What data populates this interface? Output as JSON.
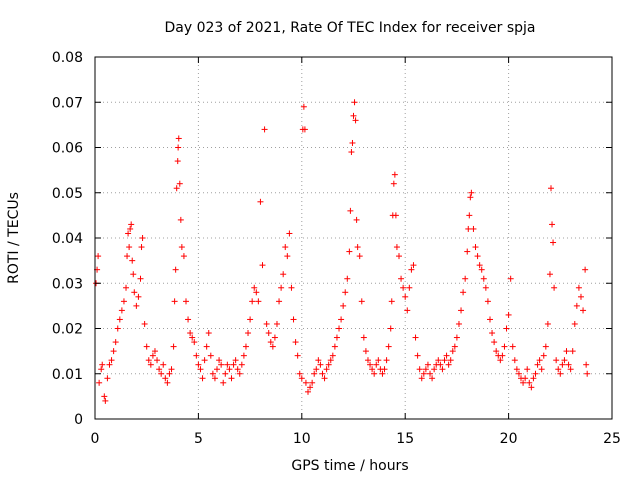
{
  "chart_data": {
    "type": "scatter",
    "title": "Day 023 of 2021, Rate Of TEC Index for receiver spja",
    "xlabel": "GPS time / hours",
    "ylabel": "ROTI / TECUs",
    "xlim": [
      0,
      25
    ],
    "ylim": [
      0,
      0.08
    ],
    "xticks": [
      0,
      5,
      10,
      15,
      20,
      25
    ],
    "xtick_labels": [
      "0",
      "5",
      "10",
      "15",
      "20",
      "25"
    ],
    "yticks": [
      0,
      0.01,
      0.02,
      0.03,
      0.04,
      0.05,
      0.06,
      0.07,
      0.08
    ],
    "ytick_labels": [
      "0",
      "0.01",
      "0.02",
      "0.03",
      "0.04",
      "0.05",
      "0.06",
      "0.07",
      "0.08"
    ],
    "grid": true,
    "marker": "plus",
    "color": "#ff0000",
    "series": [
      {
        "name": "ROTI",
        "points": [
          [
            0.05,
            0.03
          ],
          [
            0.1,
            0.033
          ],
          [
            0.15,
            0.036
          ],
          [
            0.2,
            0.008
          ],
          [
            0.3,
            0.011
          ],
          [
            0.35,
            0.012
          ],
          [
            0.45,
            0.005
          ],
          [
            0.5,
            0.004
          ],
          [
            0.6,
            0.009
          ],
          [
            0.7,
            0.012
          ],
          [
            0.8,
            0.013
          ],
          [
            0.9,
            0.015
          ],
          [
            1.0,
            0.017
          ],
          [
            1.1,
            0.02
          ],
          [
            1.2,
            0.022
          ],
          [
            1.3,
            0.024
          ],
          [
            1.4,
            0.026
          ],
          [
            1.5,
            0.029
          ],
          [
            1.55,
            0.036
          ],
          [
            1.6,
            0.041
          ],
          [
            1.65,
            0.038
          ],
          [
            1.7,
            0.042
          ],
          [
            1.75,
            0.043
          ],
          [
            1.8,
            0.035
          ],
          [
            1.85,
            0.032
          ],
          [
            1.9,
            0.028
          ],
          [
            2.0,
            0.025
          ],
          [
            2.1,
            0.027
          ],
          [
            2.2,
            0.031
          ],
          [
            2.25,
            0.038
          ],
          [
            2.3,
            0.04
          ],
          [
            2.4,
            0.021
          ],
          [
            2.5,
            0.016
          ],
          [
            2.6,
            0.013
          ],
          [
            2.7,
            0.012
          ],
          [
            2.8,
            0.014
          ],
          [
            2.9,
            0.015
          ],
          [
            3.0,
            0.013
          ],
          [
            3.1,
            0.011
          ],
          [
            3.2,
            0.01
          ],
          [
            3.3,
            0.012
          ],
          [
            3.4,
            0.009
          ],
          [
            3.5,
            0.008
          ],
          [
            3.6,
            0.01
          ],
          [
            3.7,
            0.011
          ],
          [
            3.8,
            0.016
          ],
          [
            3.85,
            0.026
          ],
          [
            3.9,
            0.033
          ],
          [
            3.95,
            0.051
          ],
          [
            4.0,
            0.057
          ],
          [
            4.02,
            0.06
          ],
          [
            4.05,
            0.062
          ],
          [
            4.1,
            0.052
          ],
          [
            4.15,
            0.044
          ],
          [
            4.2,
            0.038
          ],
          [
            4.3,
            0.036
          ],
          [
            4.4,
            0.026
          ],
          [
            4.5,
            0.022
          ],
          [
            4.6,
            0.019
          ],
          [
            4.7,
            0.018
          ],
          [
            4.8,
            0.017
          ],
          [
            4.9,
            0.014
          ],
          [
            5.0,
            0.012
          ],
          [
            5.1,
            0.011
          ],
          [
            5.2,
            0.009
          ],
          [
            5.3,
            0.013
          ],
          [
            5.4,
            0.016
          ],
          [
            5.5,
            0.019
          ],
          [
            5.6,
            0.014
          ],
          [
            5.7,
            0.01
          ],
          [
            5.8,
            0.009
          ],
          [
            5.9,
            0.011
          ],
          [
            6.0,
            0.013
          ],
          [
            6.1,
            0.012
          ],
          [
            6.2,
            0.008
          ],
          [
            6.3,
            0.01
          ],
          [
            6.4,
            0.012
          ],
          [
            6.5,
            0.011
          ],
          [
            6.6,
            0.009
          ],
          [
            6.7,
            0.012
          ],
          [
            6.8,
            0.013
          ],
          [
            6.9,
            0.011
          ],
          [
            7.0,
            0.01
          ],
          [
            7.1,
            0.012
          ],
          [
            7.2,
            0.014
          ],
          [
            7.3,
            0.016
          ],
          [
            7.4,
            0.019
          ],
          [
            7.5,
            0.022
          ],
          [
            7.6,
            0.026
          ],
          [
            7.7,
            0.029
          ],
          [
            7.8,
            0.028
          ],
          [
            7.9,
            0.026
          ],
          [
            8.0,
            0.048
          ],
          [
            8.1,
            0.034
          ],
          [
            8.2,
            0.064
          ],
          [
            8.3,
            0.021
          ],
          [
            8.4,
            0.019
          ],
          [
            8.5,
            0.017
          ],
          [
            8.6,
            0.016
          ],
          [
            8.7,
            0.018
          ],
          [
            8.8,
            0.021
          ],
          [
            8.9,
            0.026
          ],
          [
            9.0,
            0.029
          ],
          [
            9.1,
            0.032
          ],
          [
            9.2,
            0.038
          ],
          [
            9.3,
            0.036
          ],
          [
            9.4,
            0.041
          ],
          [
            9.5,
            0.029
          ],
          [
            9.6,
            0.022
          ],
          [
            9.7,
            0.017
          ],
          [
            9.8,
            0.014
          ],
          [
            9.9,
            0.01
          ],
          [
            10.0,
            0.009
          ],
          [
            10.05,
            0.064
          ],
          [
            10.1,
            0.069
          ],
          [
            10.15,
            0.064
          ],
          [
            10.2,
            0.008
          ],
          [
            10.3,
            0.006
          ],
          [
            10.4,
            0.007
          ],
          [
            10.5,
            0.008
          ],
          [
            10.6,
            0.01
          ],
          [
            10.7,
            0.011
          ],
          [
            10.8,
            0.013
          ],
          [
            10.9,
            0.012
          ],
          [
            11.0,
            0.01
          ],
          [
            11.1,
            0.009
          ],
          [
            11.2,
            0.011
          ],
          [
            11.3,
            0.012
          ],
          [
            11.4,
            0.013
          ],
          [
            11.5,
            0.014
          ],
          [
            11.6,
            0.016
          ],
          [
            11.7,
            0.018
          ],
          [
            11.8,
            0.02
          ],
          [
            11.9,
            0.022
          ],
          [
            12.0,
            0.025
          ],
          [
            12.1,
            0.028
          ],
          [
            12.2,
            0.031
          ],
          [
            12.3,
            0.037
          ],
          [
            12.35,
            0.046
          ],
          [
            12.4,
            0.059
          ],
          [
            12.45,
            0.061
          ],
          [
            12.5,
            0.067
          ],
          [
            12.55,
            0.07
          ],
          [
            12.6,
            0.066
          ],
          [
            12.65,
            0.044
          ],
          [
            12.7,
            0.038
          ],
          [
            12.8,
            0.036
          ],
          [
            12.9,
            0.026
          ],
          [
            13.0,
            0.018
          ],
          [
            13.1,
            0.015
          ],
          [
            13.2,
            0.013
          ],
          [
            13.3,
            0.012
          ],
          [
            13.4,
            0.011
          ],
          [
            13.5,
            0.01
          ],
          [
            13.6,
            0.012
          ],
          [
            13.7,
            0.013
          ],
          [
            13.8,
            0.011
          ],
          [
            13.9,
            0.01
          ],
          [
            14.0,
            0.011
          ],
          [
            14.1,
            0.013
          ],
          [
            14.2,
            0.016
          ],
          [
            14.3,
            0.02
          ],
          [
            14.35,
            0.026
          ],
          [
            14.4,
            0.045
          ],
          [
            14.45,
            0.052
          ],
          [
            14.5,
            0.054
          ],
          [
            14.55,
            0.045
          ],
          [
            14.6,
            0.038
          ],
          [
            14.7,
            0.036
          ],
          [
            14.8,
            0.031
          ],
          [
            14.9,
            0.029
          ],
          [
            15.0,
            0.027
          ],
          [
            15.1,
            0.024
          ],
          [
            15.2,
            0.029
          ],
          [
            15.3,
            0.033
          ],
          [
            15.4,
            0.034
          ],
          [
            15.5,
            0.018
          ],
          [
            15.6,
            0.014
          ],
          [
            15.7,
            0.011
          ],
          [
            15.8,
            0.009
          ],
          [
            15.9,
            0.01
          ],
          [
            16.0,
            0.011
          ],
          [
            16.1,
            0.012
          ],
          [
            16.2,
            0.01
          ],
          [
            16.3,
            0.009
          ],
          [
            16.4,
            0.011
          ],
          [
            16.5,
            0.012
          ],
          [
            16.6,
            0.013
          ],
          [
            16.7,
            0.012
          ],
          [
            16.8,
            0.011
          ],
          [
            16.9,
            0.013
          ],
          [
            17.0,
            0.014
          ],
          [
            17.1,
            0.012
          ],
          [
            17.2,
            0.013
          ],
          [
            17.3,
            0.015
          ],
          [
            17.4,
            0.016
          ],
          [
            17.5,
            0.018
          ],
          [
            17.6,
            0.021
          ],
          [
            17.7,
            0.024
          ],
          [
            17.8,
            0.028
          ],
          [
            17.9,
            0.031
          ],
          [
            18.0,
            0.037
          ],
          [
            18.05,
            0.042
          ],
          [
            18.1,
            0.045
          ],
          [
            18.15,
            0.049
          ],
          [
            18.2,
            0.05
          ],
          [
            18.3,
            0.042
          ],
          [
            18.4,
            0.038
          ],
          [
            18.5,
            0.036
          ],
          [
            18.6,
            0.034
          ],
          [
            18.7,
            0.033
          ],
          [
            18.8,
            0.031
          ],
          [
            18.9,
            0.029
          ],
          [
            19.0,
            0.026
          ],
          [
            19.1,
            0.022
          ],
          [
            19.2,
            0.019
          ],
          [
            19.3,
            0.017
          ],
          [
            19.4,
            0.015
          ],
          [
            19.5,
            0.014
          ],
          [
            19.6,
            0.013
          ],
          [
            19.7,
            0.014
          ],
          [
            19.8,
            0.016
          ],
          [
            19.9,
            0.02
          ],
          [
            20.0,
            0.023
          ],
          [
            20.1,
            0.031
          ],
          [
            20.2,
            0.016
          ],
          [
            20.3,
            0.013
          ],
          [
            20.4,
            0.011
          ],
          [
            20.5,
            0.01
          ],
          [
            20.6,
            0.009
          ],
          [
            20.7,
            0.008
          ],
          [
            20.8,
            0.009
          ],
          [
            20.9,
            0.011
          ],
          [
            21.0,
            0.008
          ],
          [
            21.1,
            0.007
          ],
          [
            21.2,
            0.009
          ],
          [
            21.3,
            0.01
          ],
          [
            21.4,
            0.012
          ],
          [
            21.5,
            0.013
          ],
          [
            21.6,
            0.011
          ],
          [
            21.7,
            0.014
          ],
          [
            21.8,
            0.016
          ],
          [
            21.9,
            0.021
          ],
          [
            22.0,
            0.032
          ],
          [
            22.05,
            0.051
          ],
          [
            22.1,
            0.043
          ],
          [
            22.15,
            0.039
          ],
          [
            22.2,
            0.029
          ],
          [
            22.3,
            0.013
          ],
          [
            22.4,
            0.011
          ],
          [
            22.5,
            0.01
          ],
          [
            22.6,
            0.012
          ],
          [
            22.7,
            0.013
          ],
          [
            22.8,
            0.015
          ],
          [
            22.9,
            0.012
          ],
          [
            23.0,
            0.011
          ],
          [
            23.1,
            0.015
          ],
          [
            23.2,
            0.021
          ],
          [
            23.3,
            0.025
          ],
          [
            23.4,
            0.029
          ],
          [
            23.5,
            0.027
          ],
          [
            23.6,
            0.024
          ],
          [
            23.7,
            0.033
          ],
          [
            23.75,
            0.012
          ],
          [
            23.8,
            0.01
          ]
        ]
      }
    ]
  }
}
